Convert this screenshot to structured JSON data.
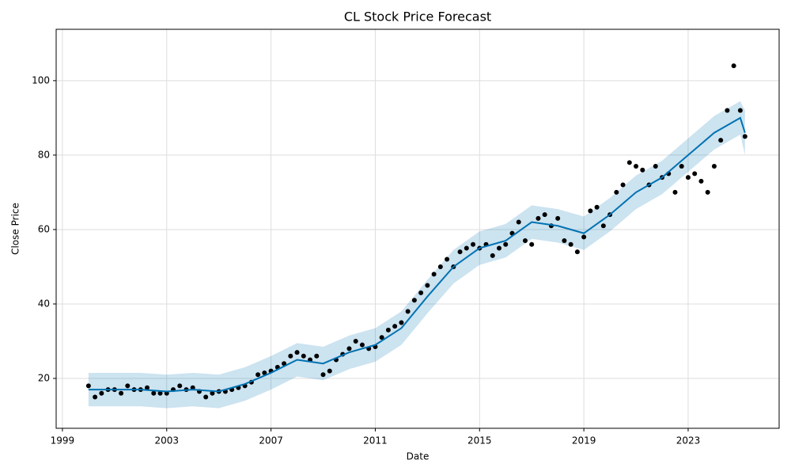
{
  "chart_data": {
    "type": "forecast",
    "title": "CL Stock Price Forecast",
    "x_label": "Date",
    "y_label": "Close Price",
    "xlim": [
      1998.76,
      2026.49
    ],
    "xticks": [
      1999,
      2003,
      2007,
      2011,
      2015,
      2019,
      2023
    ],
    "ylim": [
      6.6,
      113.8
    ],
    "yticks": [
      20,
      40,
      60,
      80,
      100
    ],
    "grid": true,
    "observed": {
      "color": "#000000",
      "x": [
        2000,
        2000.25,
        2000.5,
        2000.75,
        2001,
        2001.25,
        2001.5,
        2001.75,
        2002,
        2002.25,
        2002.5,
        2002.75,
        2003,
        2003.25,
        2003.5,
        2003.75,
        2004,
        2004.25,
        2004.5,
        2004.75,
        2005,
        2005.25,
        2005.5,
        2005.75,
        2006,
        2006.25,
        2006.5,
        2006.75,
        2007,
        2007.25,
        2007.5,
        2007.75,
        2008,
        2008.25,
        2008.5,
        2008.75,
        2009,
        2009.25,
        2009.5,
        2009.75,
        2010,
        2010.25,
        2010.5,
        2010.75,
        2011,
        2011.25,
        2011.5,
        2011.75,
        2012,
        2012.25,
        2012.5,
        2012.75,
        2013,
        2013.25,
        2013.5,
        2013.75,
        2014,
        2014.25,
        2014.5,
        2014.75,
        2015,
        2015.25,
        2015.5,
        2015.75,
        2016,
        2016.25,
        2016.5,
        2016.75,
        2017,
        2017.25,
        2017.5,
        2017.75,
        2018,
        2018.25,
        2018.5,
        2018.75,
        2019,
        2019.25,
        2019.5,
        2019.75,
        2020,
        2020.25,
        2020.5,
        2020.75,
        2021,
        2021.25,
        2021.5,
        2021.75,
        2022,
        2022.25,
        2022.5,
        2022.75,
        2023,
        2023.25,
        2023.5,
        2023.75,
        2024,
        2024.25,
        2024.5,
        2024.75,
        2025,
        2025.18
      ],
      "values": [
        18,
        15,
        16,
        17,
        17,
        16,
        18,
        17,
        17,
        17.5,
        16,
        16,
        16,
        17,
        18,
        17,
        17.5,
        16.5,
        15,
        16,
        16.5,
        16.5,
        17,
        17.5,
        18,
        19,
        21,
        21.5,
        22,
        23,
        24,
        26,
        27,
        26,
        25,
        26,
        21,
        22,
        25,
        26.5,
        28,
        30,
        29,
        28,
        28.5,
        31,
        33,
        34,
        35,
        38,
        41,
        43,
        45,
        48,
        50,
        52,
        50,
        54,
        55,
        56,
        55,
        56,
        53,
        55,
        56,
        59,
        62,
        57,
        56,
        63,
        64,
        61,
        63,
        57,
        56,
        54,
        58,
        65,
        66,
        61,
        64,
        70,
        72,
        78,
        77,
        76,
        72,
        77,
        74,
        75,
        70,
        77,
        74,
        75,
        73,
        70,
        77,
        84,
        92,
        104,
        92,
        85
      ]
    },
    "forecast": {
      "color": "#0072B2",
      "band_color": "#0072B2",
      "x": [
        2000,
        2001,
        2002,
        2003,
        2004,
        2005,
        2006,
        2007,
        2008,
        2009,
        2010,
        2011,
        2012,
        2013,
        2014,
        2015,
        2016,
        2017,
        2018,
        2019,
        2020,
        2021,
        2022,
        2023,
        2024,
        2025,
        2025.18
      ],
      "values": [
        17,
        17,
        17,
        16.5,
        17,
        16.5,
        18.5,
        21.5,
        25,
        24,
        27,
        29,
        33.5,
        42,
        50,
        55,
        57,
        62,
        61,
        59,
        64,
        70,
        74,
        80,
        86,
        90,
        86
      ],
      "lower": [
        12.5,
        12.5,
        12.5,
        12,
        12.5,
        12,
        14,
        17,
        20.5,
        19.5,
        22.5,
        24.5,
        29,
        37.5,
        45.5,
        50.5,
        52.5,
        57.5,
        56.5,
        54.5,
        59.5,
        65.5,
        69.5,
        75.5,
        81.5,
        85.5,
        80
      ],
      "upper": [
        21.5,
        21.5,
        21.5,
        21,
        21.5,
        21,
        23,
        26,
        29.5,
        28.5,
        31.5,
        33.5,
        38,
        46.5,
        54.5,
        59.5,
        61.5,
        66.5,
        65.5,
        63.5,
        68.5,
        74.5,
        78.5,
        84.5,
        90.5,
        94.5,
        92
      ]
    }
  }
}
